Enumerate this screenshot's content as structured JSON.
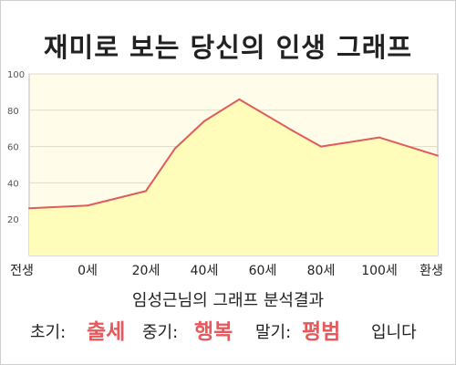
{
  "title": "재미로 보는 당신의 인생 그래프",
  "result_heading": "임성근님의 그래프 분석결과",
  "summary": {
    "early_label": "초기:",
    "early_value": "출세",
    "mid_label": "중기:",
    "mid_value": "행복",
    "late_label": "말기:",
    "late_value": "평범",
    "ending": "입니다"
  },
  "colors": {
    "line": "#e05b5b",
    "fill": "#fffdb9",
    "plot_background": "#fffdea",
    "accent": "#e8575a"
  },
  "chart_data": {
    "type": "area",
    "title": "재미로 보는 당신의 인생 그래프",
    "xlabel": "",
    "ylabel": "",
    "x_tick_labels": [
      "전생",
      "0세",
      "20세",
      "40세",
      "60세",
      "80세",
      "100세",
      "환생"
    ],
    "y_ticks": [
      20,
      40,
      60,
      80,
      100
    ],
    "ylim": [
      0,
      100
    ],
    "grid": "horizontal",
    "series": [
      {
        "points": [
          {
            "x": 0,
            "y": 26
          },
          {
            "x": 1,
            "y": 27.5
          },
          {
            "x": 2,
            "y": 35.5
          },
          {
            "x": 2.5,
            "y": 59
          },
          {
            "x": 3,
            "y": 74
          },
          {
            "x": 3.6,
            "y": 86
          },
          {
            "x": 4.5,
            "y": 69
          },
          {
            "x": 5,
            "y": 60
          },
          {
            "x": 6,
            "y": 65
          },
          {
            "x": 7,
            "y": 55
          }
        ]
      }
    ]
  }
}
